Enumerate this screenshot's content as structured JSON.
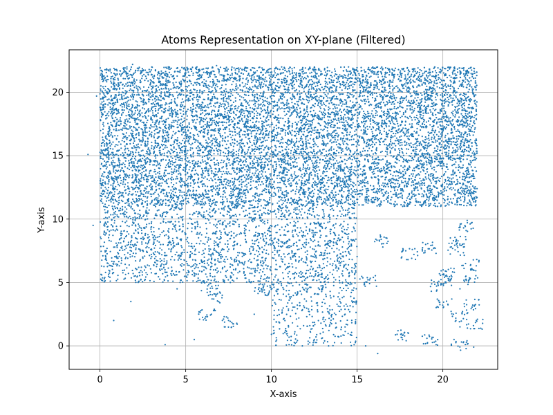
{
  "chart_data": {
    "type": "scatter",
    "title": "Atoms Representation on XY-plane (Filtered)",
    "xlabel": "X-axis",
    "ylabel": "Y-axis",
    "xlim": [
      -1.8,
      23.2
    ],
    "ylim": [
      -1.85,
      23.35
    ],
    "xticks": [
      0,
      5,
      10,
      15,
      20
    ],
    "yticks": [
      0,
      5,
      10,
      15,
      20
    ],
    "xtick_labels": [
      "0",
      "5",
      "10",
      "15",
      "20"
    ],
    "ytick_labels": [
      "0",
      "5",
      "10",
      "15",
      "20"
    ],
    "grid": true,
    "point_color": "#1f77b4",
    "approx_point_count": 12000,
    "series": [
      {
        "density_regions": [
          {
            "x": [
              0,
              22
            ],
            "y": [
              11,
              22
            ],
            "density": 1.0
          },
          {
            "x": [
              0,
              15
            ],
            "y": [
              5,
              11
            ],
            "density": 0.55
          },
          {
            "x": [
              15,
              22
            ],
            "y": [
              5,
              11
            ],
            "density": 0.12
          },
          {
            "x": [
              10,
              15
            ],
            "y": [
              0,
              5
            ],
            "density": 0.35
          },
          {
            "x": [
              0,
              10
            ],
            "y": [
              0,
              5
            ],
            "density": 0.06
          },
          {
            "x": [
              15,
              22
            ],
            "y": [
              0,
              5
            ],
            "density": 0.1
          }
        ],
        "sample_points": [
          [
            -0.2,
            19.7
          ],
          [
            0.5,
            21.7
          ],
          [
            1.9,
            22.2
          ],
          [
            3.5,
            21.3
          ],
          [
            6.8,
            22.1
          ],
          [
            10.6,
            22.0
          ],
          [
            14.5,
            22.0
          ],
          [
            19.8,
            21.6
          ],
          [
            21.5,
            21.6
          ],
          [
            22.0,
            15.2
          ],
          [
            -0.7,
            15.1
          ],
          [
            -0.4,
            9.5
          ],
          [
            0.3,
            7.5
          ],
          [
            2.0,
            5.5
          ],
          [
            4.5,
            4.5
          ],
          [
            8.0,
            8.0
          ],
          [
            12.5,
            7.0
          ],
          [
            16.5,
            7.8
          ],
          [
            19.0,
            8.0
          ],
          [
            21.0,
            4.5
          ],
          [
            0.8,
            2.0
          ],
          [
            1.8,
            3.5
          ],
          [
            3.8,
            0.1
          ],
          [
            5.5,
            0.5
          ],
          [
            6.5,
            2.5
          ],
          [
            9.0,
            2.5
          ],
          [
            11.0,
            1.5
          ],
          [
            12.5,
            0.5
          ],
          [
            14.0,
            3.5
          ],
          [
            15.5,
            0.0
          ],
          [
            16.2,
            -0.6
          ],
          [
            18.0,
            1.0
          ],
          [
            19.5,
            0.3
          ],
          [
            21.0,
            1.5
          ],
          [
            21.8,
            -0.1
          ]
        ]
      }
    ]
  }
}
